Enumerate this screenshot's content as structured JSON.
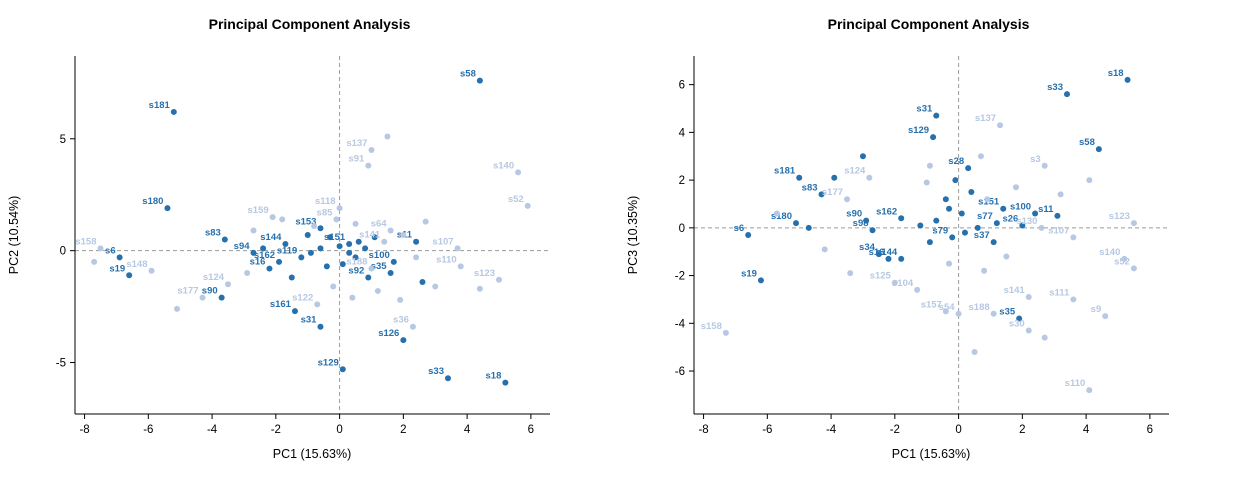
{
  "chart_data": [
    {
      "type": "scatter",
      "title": "Principal Component Analysis",
      "xlabel": "PC1 (15.63%)",
      "ylabel": "PC2 (10.54%)",
      "xlim": [
        -8.3,
        6.6
      ],
      "ylim": [
        -7.3,
        8.7
      ],
      "xticks": [
        -8,
        -6,
        -4,
        -2,
        0,
        2,
        4,
        6
      ],
      "yticks": [
        -5,
        0,
        5
      ],
      "grid": "dashed zero reference lines at x=0 and y=0",
      "legend": "none",
      "colors": {
        "dark_group": "#2670ae",
        "light_group": "#b7c8e2",
        "zero_line": "#9a9a9a"
      },
      "series": [
        {
          "name": "dark-group",
          "color": "#2670ae",
          "points": [
            [
              4.4,
              7.6,
              "s58"
            ],
            [
              -5.2,
              6.2,
              "s181"
            ],
            [
              -5.4,
              1.9,
              "s180"
            ],
            [
              -3.6,
              0.5,
              "s83"
            ],
            [
              -2.7,
              -0.1,
              "s94"
            ],
            [
              -6.9,
              -0.3,
              "s6"
            ],
            [
              -6.6,
              -1.1,
              "s19"
            ],
            [
              -1.7,
              0.3,
              "s144"
            ],
            [
              -1.9,
              -0.5,
              "s162"
            ],
            [
              -2.2,
              -0.8,
              "s16"
            ],
            [
              -0.6,
              1.0,
              "s153"
            ],
            [
              -1.2,
              -0.3,
              "s119"
            ],
            [
              0.3,
              0.3,
              "s151"
            ],
            [
              1.7,
              -0.5,
              "s100"
            ],
            [
              1.6,
              -1.0,
              "s35"
            ],
            [
              2.4,
              0.4,
              "s11"
            ],
            [
              0.9,
              -1.2,
              "s92"
            ],
            [
              -3.7,
              -2.1,
              "s90"
            ],
            [
              -1.4,
              -2.7,
              "s161"
            ],
            [
              -0.6,
              -3.4,
              "s31"
            ],
            [
              2.0,
              -4.0,
              "s126"
            ],
            [
              0.1,
              -5.3,
              "s129"
            ],
            [
              3.4,
              -5.7,
              "s33"
            ],
            [
              5.2,
              -5.9,
              "s18"
            ],
            [
              -0.3,
              0.6,
              ""
            ],
            [
              0.0,
              0.2,
              ""
            ],
            [
              0.3,
              -0.1,
              ""
            ],
            [
              -0.6,
              0.1,
              ""
            ],
            [
              -0.9,
              -0.1,
              ""
            ],
            [
              0.6,
              0.4,
              ""
            ],
            [
              0.1,
              -0.6,
              ""
            ],
            [
              -0.4,
              -0.7,
              ""
            ],
            [
              0.8,
              0.1,
              ""
            ],
            [
              -1.0,
              0.7,
              ""
            ],
            [
              1.1,
              0.6,
              ""
            ],
            [
              0.5,
              -0.3,
              ""
            ],
            [
              -2.4,
              0.1,
              ""
            ],
            [
              -1.5,
              -1.2,
              ""
            ],
            [
              2.6,
              -1.4,
              ""
            ]
          ]
        },
        {
          "name": "light-group",
          "color": "#b7c8e2",
          "points": [
            [
              -7.5,
              0.1,
              "s158"
            ],
            [
              -5.9,
              -0.9,
              "s148"
            ],
            [
              1.0,
              4.5,
              "s137"
            ],
            [
              0.9,
              3.8,
              "s91"
            ],
            [
              5.6,
              3.5,
              "s140"
            ],
            [
              5.9,
              2.0,
              "s52"
            ],
            [
              0.0,
              1.9,
              "s118"
            ],
            [
              -0.1,
              1.4,
              "s85"
            ],
            [
              -2.1,
              1.5,
              "s159"
            ],
            [
              1.6,
              0.9,
              "s64"
            ],
            [
              1.4,
              0.4,
              "s141"
            ],
            [
              3.7,
              0.1,
              "s107"
            ],
            [
              3.8,
              -0.7,
              "s110"
            ],
            [
              5.0,
              -1.3,
              "s123"
            ],
            [
              1.0,
              -0.8,
              "s188"
            ],
            [
              -3.5,
              -1.5,
              "s124"
            ],
            [
              -4.3,
              -2.1,
              "s177"
            ],
            [
              -0.7,
              -2.4,
              "s122"
            ],
            [
              2.3,
              -3.4,
              "s36"
            ],
            [
              1.5,
              5.1,
              ""
            ],
            [
              -7.7,
              -0.5,
              ""
            ],
            [
              -5.1,
              -2.6,
              ""
            ],
            [
              -2.7,
              0.9,
              ""
            ],
            [
              -1.8,
              1.4,
              ""
            ],
            [
              2.7,
              1.3,
              ""
            ],
            [
              2.4,
              -0.3,
              ""
            ],
            [
              3.0,
              -1.6,
              ""
            ],
            [
              1.2,
              -1.8,
              ""
            ],
            [
              0.4,
              -2.1,
              ""
            ],
            [
              -0.2,
              -1.6,
              ""
            ],
            [
              4.4,
              -1.7,
              ""
            ],
            [
              2.0,
              0.7,
              ""
            ],
            [
              -0.8,
              1.1,
              ""
            ],
            [
              0.5,
              1.2,
              ""
            ],
            [
              1.9,
              -2.2,
              ""
            ],
            [
              -2.9,
              -1.0,
              ""
            ]
          ]
        }
      ]
    },
    {
      "type": "scatter",
      "title": "Principal Component Analysis",
      "xlabel": "PC1 (15.63%)",
      "ylabel": "PC3 (10.35%)",
      "xlim": [
        -8.3,
        6.6
      ],
      "ylim": [
        -7.8,
        7.2
      ],
      "xticks": [
        -8,
        -6,
        -4,
        -2,
        0,
        2,
        4,
        6
      ],
      "yticks": [
        -6,
        -4,
        -2,
        0,
        2,
        4,
        6
      ],
      "grid": "dashed zero reference lines at x=0 and y=0",
      "legend": "none",
      "colors": {
        "dark_group": "#2670ae",
        "light_group": "#b7c8e2",
        "zero_line": "#9a9a9a"
      },
      "series": [
        {
          "name": "dark-group",
          "color": "#2670ae",
          "points": [
            [
              5.3,
              6.2,
              "s18"
            ],
            [
              3.4,
              5.6,
              "s33"
            ],
            [
              -0.7,
              4.7,
              "s31"
            ],
            [
              -0.8,
              3.8,
              "s129"
            ],
            [
              4.4,
              3.3,
              "s58"
            ],
            [
              0.3,
              2.5,
              "s28"
            ],
            [
              -5.0,
              2.1,
              "s181"
            ],
            [
              -4.3,
              1.4,
              "s83"
            ],
            [
              1.4,
              0.8,
              "s151"
            ],
            [
              2.4,
              0.6,
              "s100"
            ],
            [
              3.1,
              0.5,
              "s11"
            ],
            [
              1.2,
              0.2,
              "s77"
            ],
            [
              2.0,
              0.1,
              "s26"
            ],
            [
              -2.9,
              0.3,
              "s90"
            ],
            [
              -2.7,
              -0.1,
              "s98"
            ],
            [
              -1.8,
              0.4,
              "s162"
            ],
            [
              -5.1,
              0.2,
              "s180"
            ],
            [
              -6.6,
              -0.3,
              "s6"
            ],
            [
              -0.2,
              -0.4,
              "s79"
            ],
            [
              1.1,
              -0.6,
              "s37"
            ],
            [
              -2.5,
              -1.1,
              "s34"
            ],
            [
              -2.2,
              -1.3,
              "s16"
            ],
            [
              -1.8,
              -1.3,
              "s144"
            ],
            [
              -6.2,
              -2.2,
              "s19"
            ],
            [
              1.9,
              -3.8,
              "s35"
            ],
            [
              -3.0,
              3.0,
              ""
            ],
            [
              -3.9,
              2.1,
              ""
            ],
            [
              -0.1,
              2.0,
              ""
            ],
            [
              0.4,
              1.5,
              ""
            ],
            [
              -0.4,
              1.2,
              ""
            ],
            [
              0.1,
              0.6,
              ""
            ],
            [
              -0.7,
              0.3,
              ""
            ],
            [
              -1.2,
              0.1,
              ""
            ],
            [
              0.6,
              0.0,
              ""
            ],
            [
              -0.9,
              -0.6,
              ""
            ],
            [
              0.2,
              -0.2,
              ""
            ],
            [
              -4.7,
              0.0,
              ""
            ],
            [
              -0.3,
              0.8,
              ""
            ]
          ]
        },
        {
          "name": "light-group",
          "color": "#b7c8e2",
          "points": [
            [
              1.3,
              4.3,
              "s137"
            ],
            [
              2.7,
              2.6,
              "s3"
            ],
            [
              -2.8,
              2.1,
              "s124"
            ],
            [
              -3.5,
              1.2,
              "s177"
            ],
            [
              5.5,
              0.2,
              "s123"
            ],
            [
              2.6,
              0.0,
              "s130"
            ],
            [
              3.6,
              -0.4,
              "s107"
            ],
            [
              5.2,
              -1.3,
              "s140"
            ],
            [
              5.5,
              -1.7,
              "s52"
            ],
            [
              -2.0,
              -2.3,
              "s125"
            ],
            [
              -1.3,
              -2.6,
              "s104"
            ],
            [
              2.2,
              -2.9,
              "s141"
            ],
            [
              3.6,
              -3.0,
              "s111"
            ],
            [
              -0.4,
              -3.5,
              "s157"
            ],
            [
              0.0,
              -3.6,
              "s54"
            ],
            [
              1.1,
              -3.6,
              "s188"
            ],
            [
              4.6,
              -3.7,
              "s9"
            ],
            [
              2.2,
              -4.3,
              "s30"
            ],
            [
              -7.3,
              -4.4,
              "s158"
            ],
            [
              4.1,
              -6.8,
              "s110"
            ],
            [
              -5.7,
              0.6,
              ""
            ],
            [
              -4.2,
              -0.9,
              ""
            ],
            [
              -3.4,
              -1.9,
              ""
            ],
            [
              -1.0,
              1.9,
              ""
            ],
            [
              0.7,
              3.0,
              ""
            ],
            [
              1.8,
              1.7,
              ""
            ],
            [
              3.2,
              1.4,
              ""
            ],
            [
              4.1,
              2.0,
              ""
            ],
            [
              -0.3,
              -1.5,
              ""
            ],
            [
              0.8,
              -1.8,
              ""
            ],
            [
              1.5,
              -1.2,
              ""
            ],
            [
              2.7,
              -4.6,
              ""
            ],
            [
              0.5,
              -5.2,
              ""
            ],
            [
              -0.9,
              2.6,
              ""
            ],
            [
              0.9,
              1.2,
              ""
            ]
          ]
        }
      ]
    }
  ]
}
